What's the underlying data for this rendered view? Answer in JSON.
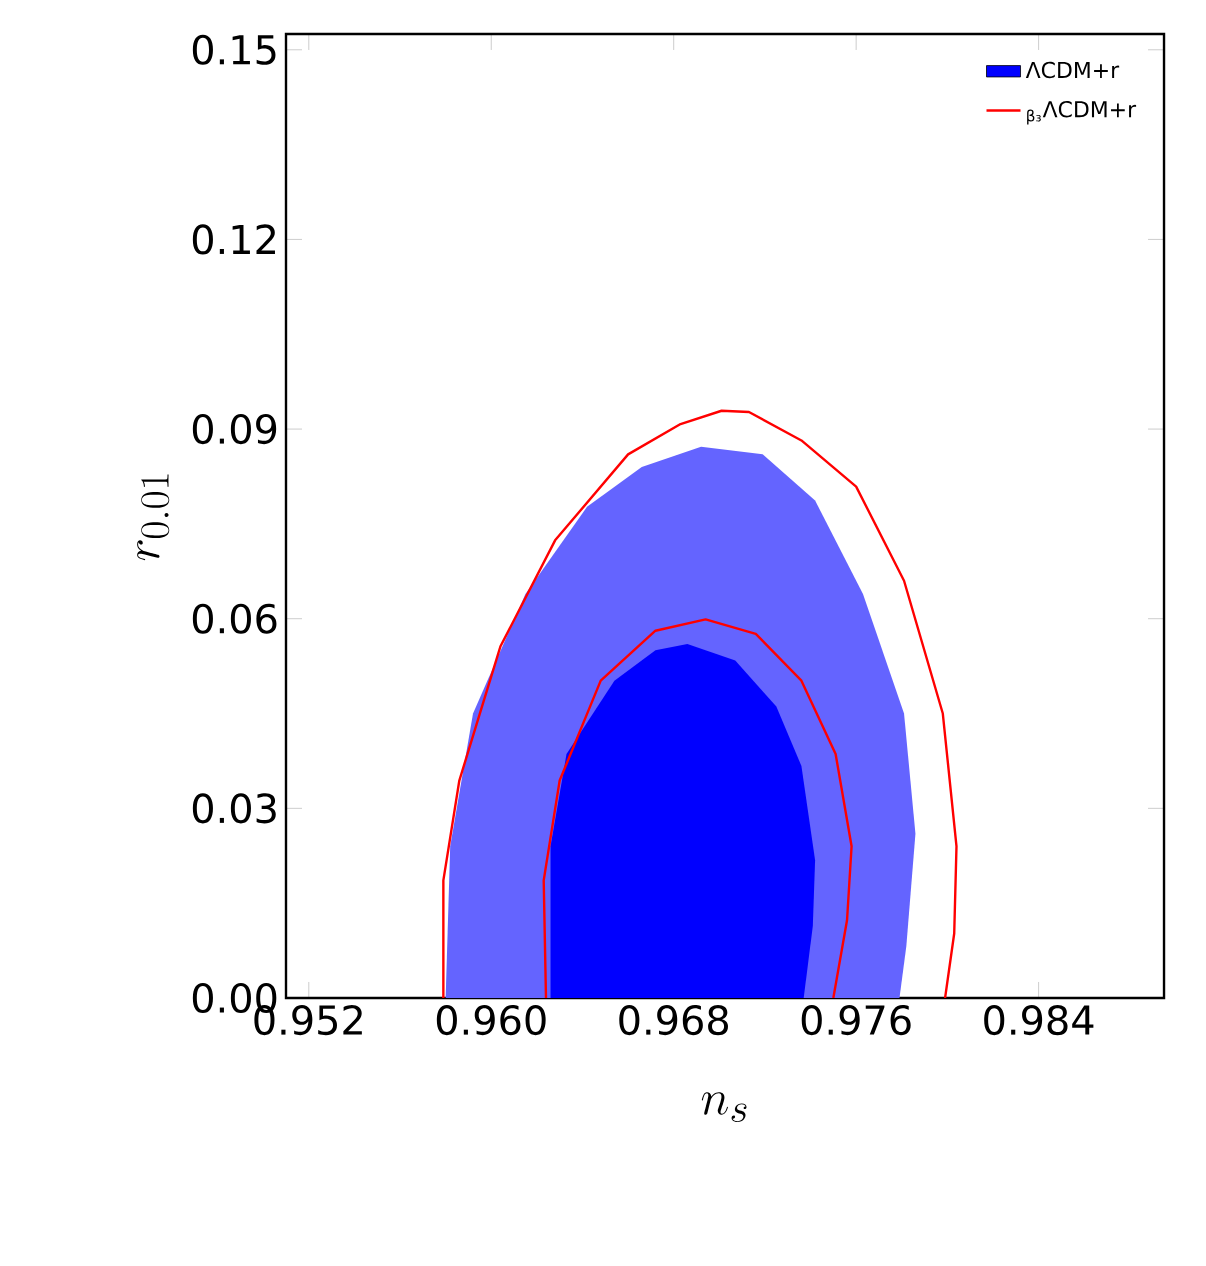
{
  "chart_data": {
    "type": "area",
    "xlabel": "n_s",
    "ylabel": "r_{0.01}",
    "xlim": [
      0.951,
      0.9895
    ],
    "ylim": [
      0,
      0.1525
    ],
    "xticks": [
      0.952,
      {
        "value": 0.96,
        "label": "0.960"
      },
      0.968,
      0.976,
      0.984
    ],
    "yticks": [
      {
        "value": 0,
        "label": "0.00"
      },
      0.03,
      0.06,
      0.09,
      0.12,
      0.15
    ],
    "legend": "top right",
    "grid": false,
    "series": [
      {
        "color": "#6464ff",
        "x": [
          0.958,
          0.9582,
          0.9592,
          0.9615,
          0.9642,
          0.9666,
          0.9692,
          0.9719,
          0.9742,
          0.9763,
          0.9781,
          0.9786,
          0.9782,
          0.9779
        ],
        "values": [
          0,
          0.024,
          0.045,
          0.0639,
          0.0777,
          0.084,
          0.0872,
          0.086,
          0.0787,
          0.0639,
          0.045,
          0.026,
          0.0082,
          0
        ]
      },
      {
        "name": "ΛCDM+r",
        "color": "#0000ff",
        "x": [
          0.9626,
          0.9626,
          0.9633,
          0.9654,
          0.9672,
          0.9686,
          0.9707,
          0.9725,
          0.9736,
          0.9742,
          0.9741,
          0.9737
        ],
        "values": [
          0,
          0.024,
          0.0386,
          0.0502,
          0.055,
          0.056,
          0.0534,
          0.0461,
          0.0367,
          0.0218,
          0.0114,
          0
        ]
      },
      {
        "type": "line",
        "name": "$_{β₃}$ΛCDM+r",
        "color": "#ff0000",
        "x": [
          0.9579,
          0.9579,
          0.9586,
          0.9604,
          0.9628,
          0.966,
          0.9683,
          0.9701,
          0.9713,
          0.9736,
          0.976,
          0.9781,
          0.9798,
          0.9804,
          0.9803,
          0.9799
        ],
        "values": [
          0,
          0.0186,
          0.0344,
          0.0556,
          0.0724,
          0.086,
          0.0908,
          0.0929,
          0.0927,
          0.0882,
          0.0809,
          0.066,
          0.045,
          0.024,
          0.0102,
          0
        ]
      },
      {
        "type": "line",
        "color": "#ff0000",
        "x": [
          0.9624,
          0.9623,
          0.963,
          0.9648,
          0.9672,
          0.9694,
          0.9716,
          0.9736,
          0.9751,
          0.9758,
          0.9756,
          0.975
        ],
        "values": [
          0,
          0.0186,
          0.0344,
          0.0502,
          0.0581,
          0.0599,
          0.0576,
          0.0502,
          0.0386,
          0.024,
          0.0123,
          0
        ]
      }
    ]
  }
}
